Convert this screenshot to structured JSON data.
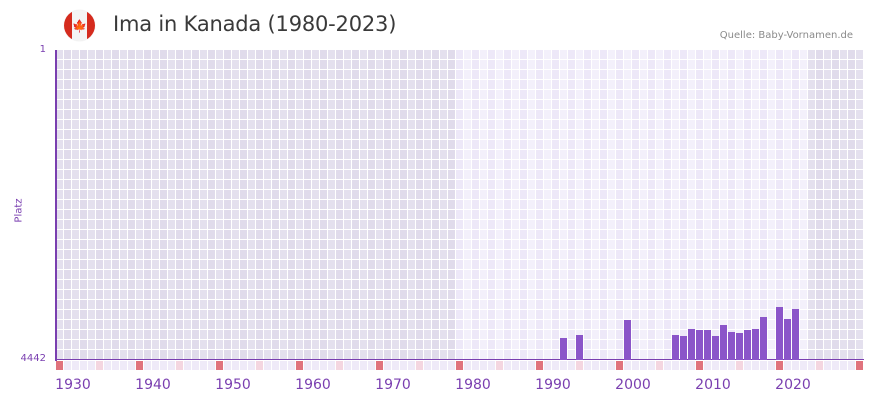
{
  "header": {
    "flag_icon": "canada-flag-icon",
    "title": "Ima in Kanada (1980-2023)",
    "source": "Quelle: Baby-Vornamen.de"
  },
  "axis": {
    "y_label": "Platz",
    "y_top": "1",
    "y_bottom": "4442",
    "x_labels": [
      "1930",
      "1940",
      "1950",
      "1960",
      "1970",
      "1980",
      "1990",
      "2000",
      "2010",
      "2020"
    ]
  },
  "colors": {
    "bar": "#8b55c9",
    "axis": "#7a3fb0",
    "bg_out_a": "#e4e0ee",
    "bg_out_b": "#e0dbeb",
    "bg_in_a": "#ede8f8",
    "bg_in_b": "#f3f0fb",
    "marker_decade": "#e0737d",
    "marker_half": "#f4d6e0",
    "marker_plain": "#efeaf8"
  },
  "chart_data": {
    "type": "bar",
    "title": "Ima in Kanada (1980-2023)",
    "xlabel": "",
    "ylabel": "Platz",
    "ylim": [
      4442,
      1
    ],
    "y_inverted": true,
    "x_range": [
      1930,
      2030
    ],
    "highlight_range": [
      1980,
      2023
    ],
    "grid": true,
    "legend": null,
    "x": [
      1993,
      1995,
      2001,
      2007,
      2008,
      2009,
      2010,
      2011,
      2012,
      2013,
      2014,
      2015,
      2016,
      2017,
      2018,
      2020,
      2021,
      2022
    ],
    "values": [
      4127,
      4084,
      3869,
      4084,
      4098,
      3998,
      4012,
      4012,
      4098,
      3941,
      4041,
      4055,
      4012,
      3998,
      3826,
      3683,
      3855,
      3712
    ]
  }
}
